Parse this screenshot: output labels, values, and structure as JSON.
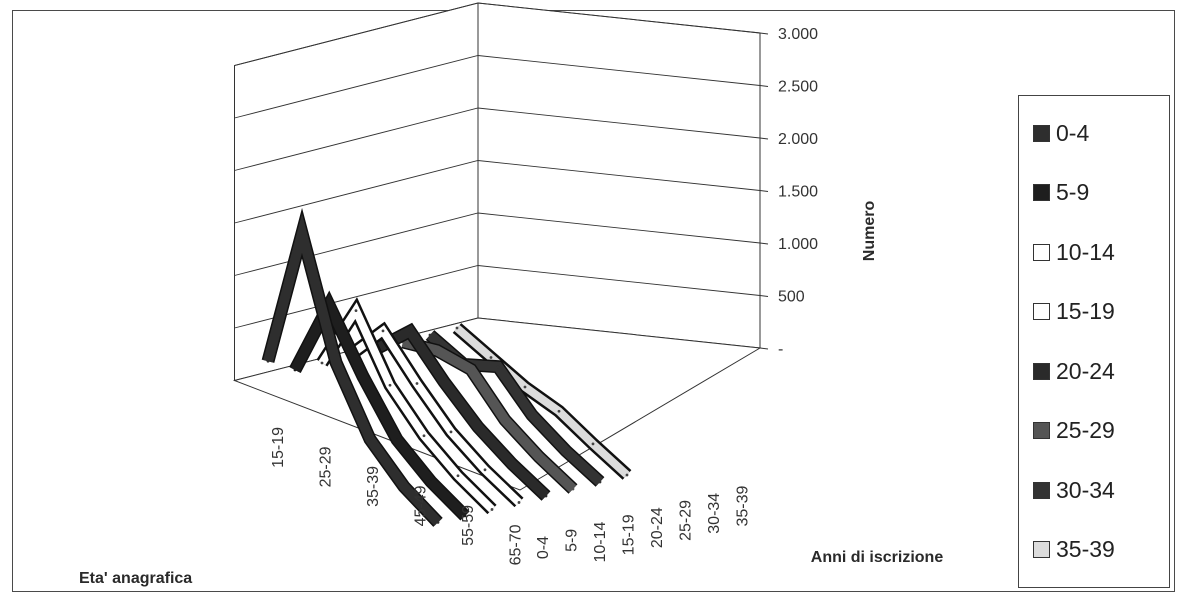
{
  "chart_data": {
    "type": "line",
    "variant": "3d-line",
    "xlabel": "Anni di iscrizione",
    "zlabel": "Eta' anagrafica",
    "ylabel": "Numero",
    "y_ticks": [
      "-",
      "500",
      "1.000",
      "1.500",
      "2.000",
      "2.500",
      "3.000"
    ],
    "ylim": [
      0,
      3000
    ],
    "depth_ticks": [
      "15-19",
      "25-29",
      "35-39",
      "45-49",
      "55-59",
      "65-70"
    ],
    "x_ticks": [
      "0-4",
      "5-9",
      "10-14",
      "15-19",
      "20-24",
      "25-29",
      "30-34",
      "35-39"
    ],
    "grid": true,
    "legend_position": "right",
    "series": [
      {
        "name": "0-4",
        "color": "#2e2e2e",
        "values": [
          150,
          1650,
          700,
          250,
          80,
          20
        ]
      },
      {
        "name": "5-9",
        "color": "#1e1e1e",
        "values": [
          0,
          900,
          500,
          180,
          60,
          15
        ]
      },
      {
        "name": "10-14",
        "color": "#ffffff",
        "values": [
          0,
          780,
          350,
          150,
          50,
          10
        ]
      },
      {
        "name": "15-19",
        "color": "#ffffff",
        "values": [
          0,
          520,
          300,
          120,
          40,
          10
        ]
      },
      {
        "name": "20-24",
        "color": "#2a2a2a",
        "values": [
          0,
          450,
          250,
          100,
          30,
          5
        ]
      },
      {
        "name": "25-29",
        "color": "#555555",
        "values": [
          0,
          200,
          300,
          100,
          30,
          5
        ]
      },
      {
        "name": "30-34",
        "color": "#333333",
        "values": [
          0,
          0,
          260,
          80,
          20,
          5
        ]
      },
      {
        "name": "35-39",
        "color": "#dcdcdc",
        "values": [
          0,
          0,
          0,
          50,
          20,
          5
        ]
      }
    ]
  }
}
